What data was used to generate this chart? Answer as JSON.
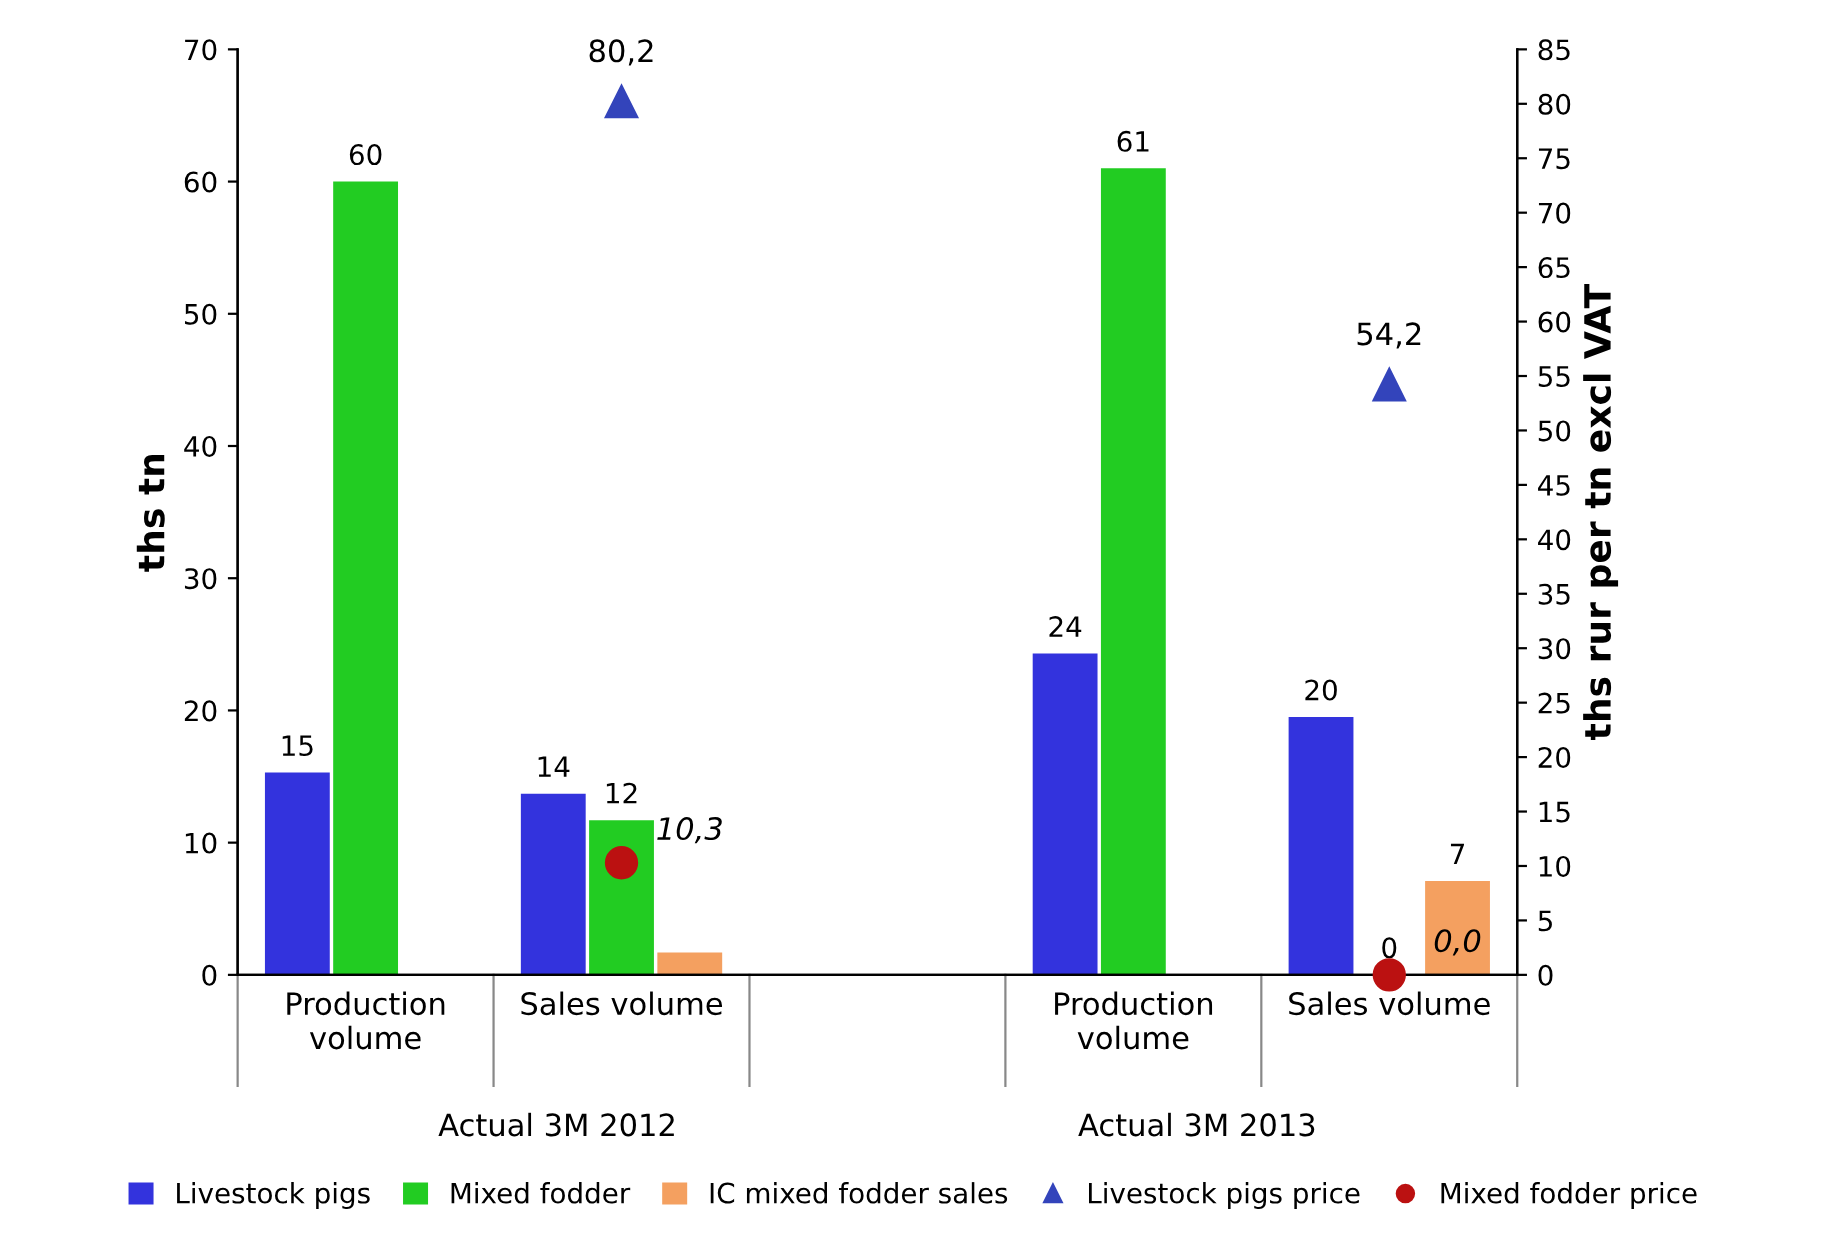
{
  "chart_data": {
    "type": "bar",
    "ylabel": "ths tn",
    "y2label": "ths rur per tn excl VAT",
    "categories": [
      "Production volume",
      "Sales volume",
      null,
      "Production volume",
      "Sales volume"
    ],
    "series": [
      {
        "name": "Livestock pigs",
        "color": "#3333dd",
        "values": [
          15.3,
          13.7,
          null,
          24.3,
          19.5
        ],
        "value_labels": [
          "15",
          "14",
          null,
          "24",
          "20"
        ]
      },
      {
        "name": "Mixed fodder",
        "color": "#22cc22",
        "values": [
          60,
          11.7,
          null,
          61,
          0
        ],
        "value_labels": [
          "60",
          "12",
          null,
          "61",
          "0"
        ]
      },
      {
        "name": "IC mixed fodder sales",
        "color": "#f4a060",
        "values": [
          null,
          1.7,
          null,
          null,
          7.1
        ],
        "value_labels": [
          null,
          null,
          null,
          null,
          "7"
        ]
      },
      {
        "name": "Livestock pigs price",
        "type": "scatter",
        "axis": "y2",
        "marker": "triangle",
        "color": "#3344bb",
        "values": [
          null,
          80.2,
          null,
          null,
          54.2
        ],
        "value_labels": [
          null,
          "80,2",
          null,
          null,
          "54,2"
        ]
      },
      {
        "name": "Mixed fodder price",
        "type": "scatter",
        "axis": "y2",
        "marker": "circle",
        "color": "#bb1111",
        "values": [
          null,
          10.3,
          null,
          null,
          0
        ],
        "value_labels": [
          null,
          "10,3",
          null,
          null,
          "0,0"
        ]
      }
    ],
    "ylim": [
      0,
      70
    ],
    "yticks": [
      0,
      10,
      20,
      30,
      40,
      50,
      60,
      70
    ],
    "y2lim": [
      0,
      85
    ],
    "y2ticks": [
      0,
      5,
      10,
      15,
      20,
      25,
      30,
      35,
      40,
      45,
      50,
      55,
      60,
      65,
      70,
      75,
      80,
      85
    ],
    "annotations": [
      "Actual 3M 2012",
      "Actual 3M 2013"
    ],
    "grid": false,
    "legend": "bottom"
  }
}
